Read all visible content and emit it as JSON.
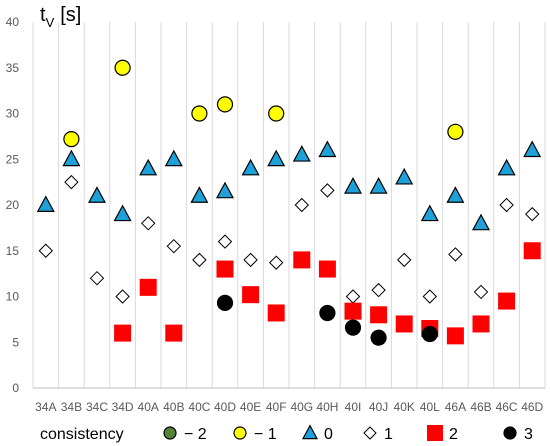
{
  "chart_data": {
    "type": "scatter",
    "title": "",
    "xlabel": "",
    "ylabel_main": "t",
    "ylabel_sub": "V",
    "ylabel_unit": "[s]",
    "ylim": [
      0,
      40
    ],
    "y_ticks": [
      0,
      5,
      10,
      15,
      20,
      25,
      30,
      35,
      40
    ],
    "grid": "vertical",
    "legend_position": "bottom",
    "categories": [
      "34A",
      "34B",
      "34C",
      "34D",
      "40A",
      "40B",
      "40C",
      "40D",
      "40E",
      "40F",
      "40G",
      "40H",
      "40I",
      "40J",
      "40K",
      "40L",
      "46A",
      "46B",
      "46C",
      "46D"
    ],
    "legend_title": "consistency",
    "series": [
      {
        "name": "− 2",
        "marker": "circle",
        "color": "#548235",
        "values": [
          null,
          null,
          null,
          null,
          null,
          null,
          null,
          null,
          null,
          null,
          null,
          null,
          null,
          null,
          null,
          null,
          null,
          null,
          null,
          null
        ]
      },
      {
        "name": "− 1",
        "marker": "circle",
        "color": "#ffff00",
        "values": [
          null,
          27.2,
          null,
          35,
          null,
          null,
          30,
          31,
          null,
          30,
          null,
          null,
          null,
          null,
          null,
          null,
          28,
          null,
          null,
          null
        ]
      },
      {
        "name": "0",
        "marker": "triangle",
        "color": "#1ea0d8",
        "values": [
          20,
          25,
          21,
          19,
          24,
          25,
          21,
          21.5,
          24,
          25,
          25.5,
          26,
          22,
          22,
          23,
          19,
          21,
          18,
          24,
          26
        ]
      },
      {
        "name": "1",
        "marker": "diamond",
        "color": "#ffffff",
        "values": [
          15,
          22.5,
          12,
          10,
          18,
          15.5,
          14,
          16,
          14,
          13.7,
          20,
          21.6,
          10,
          10.7,
          14,
          10,
          14.6,
          10.5,
          20,
          19
        ]
      },
      {
        "name": "2",
        "marker": "square",
        "color": "#ff0000",
        "values": [
          null,
          null,
          null,
          6,
          11,
          6,
          null,
          13,
          10.2,
          8.2,
          14,
          13,
          8.4,
          8,
          7,
          6.5,
          5.7,
          7,
          9.5,
          15
        ]
      },
      {
        "name": "3",
        "marker": "circle",
        "color": "#000000",
        "values": [
          null,
          null,
          null,
          null,
          null,
          null,
          null,
          9.3,
          null,
          null,
          null,
          8.2,
          6.6,
          5.5,
          null,
          5.9,
          null,
          null,
          null,
          null
        ]
      }
    ]
  }
}
